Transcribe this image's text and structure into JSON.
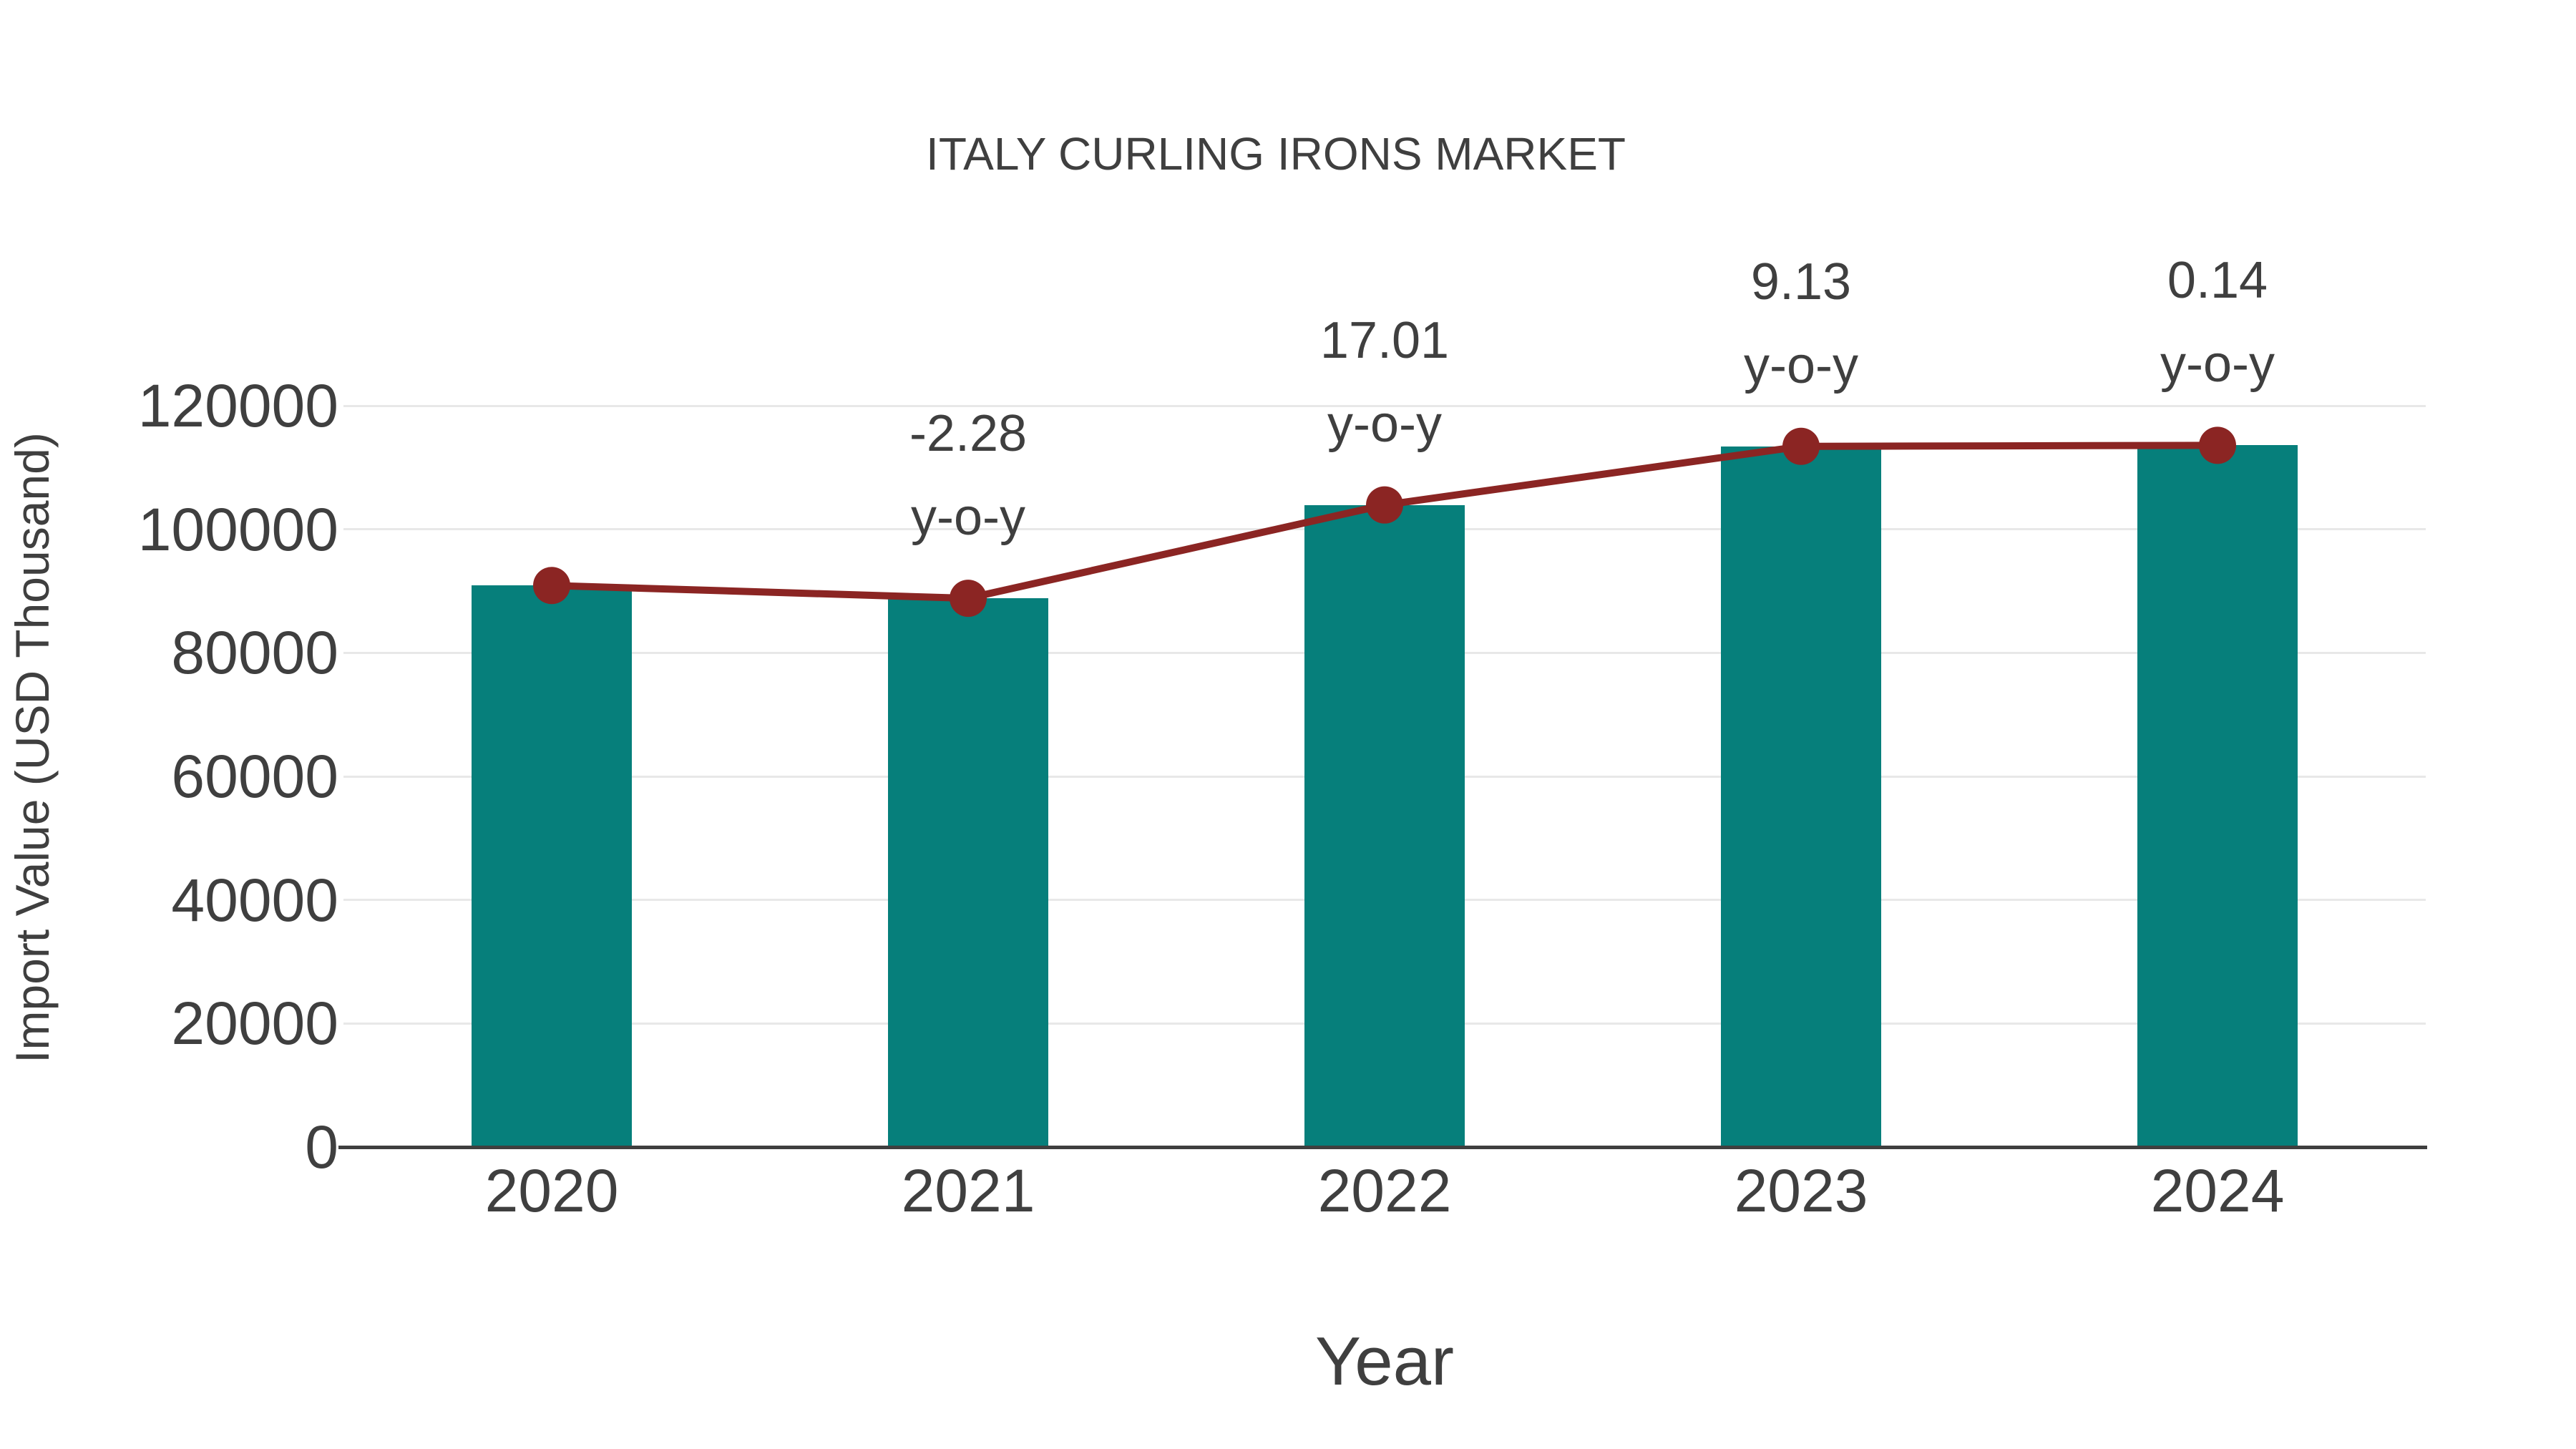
{
  "chart_data": {
    "type": "bar",
    "title": "ITALY CURLING IRONS MARKET",
    "xlabel": "Year",
    "ylabel": "Import Value (USD Thousand)",
    "categories": [
      "2020",
      "2021",
      "2022",
      "2023",
      "2024"
    ],
    "series": [
      {
        "name": "import-value-bars",
        "type": "bar",
        "values": [
          90900,
          88827,
          103936,
          113425,
          113584
        ],
        "color": "#067f7b"
      },
      {
        "name": "yoy-trend-line",
        "type": "line",
        "values": [
          90900,
          88827,
          103936,
          113425,
          113584
        ],
        "color": "#8b2523"
      }
    ],
    "annotations": [
      {
        "category": "2021",
        "lines": [
          "-2.28",
          "y-o-y"
        ]
      },
      {
        "category": "2022",
        "lines": [
          "17.01",
          "y-o-y"
        ]
      },
      {
        "category": "2023",
        "lines": [
          "9.13",
          "y-o-y"
        ]
      },
      {
        "category": "2024",
        "lines": [
          "0.14",
          "y-o-y"
        ]
      }
    ],
    "ylim": [
      0,
      120000
    ],
    "yticks": [
      0,
      20000,
      40000,
      60000,
      80000,
      100000,
      120000
    ],
    "grid": true,
    "legend_position": "none",
    "background": "#ffffff",
    "text_color": "#3f3f3f",
    "grid_color": "#e8e8e8",
    "axis_color": "#3f3f3f"
  }
}
